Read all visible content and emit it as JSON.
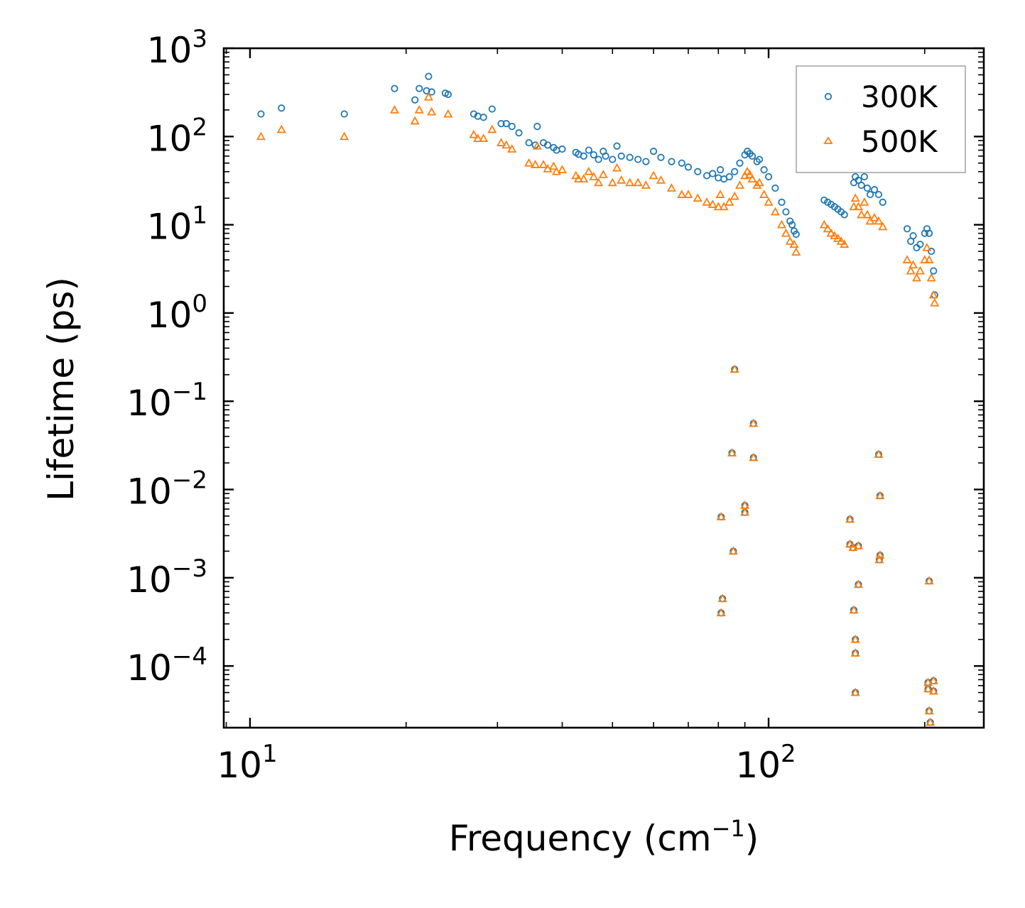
{
  "chart_data": {
    "type": "scatter",
    "xscale": "log",
    "yscale": "log",
    "xlim": [
      8.9,
      260
    ],
    "ylim": [
      2e-05,
      1000
    ],
    "xlabel": {
      "main": "Frequency (cm",
      "sup": "−1",
      "end": ")"
    },
    "ylabel": "Lifetime (ps)",
    "x_ticks": [
      {
        "base": "10",
        "exp": "1",
        "value": 10
      },
      {
        "base": "10",
        "exp": "2",
        "value": 100
      }
    ],
    "y_ticks": [
      {
        "base": "10",
        "exp": "3",
        "value": 1000
      },
      {
        "base": "10",
        "exp": "2",
        "value": 100
      },
      {
        "base": "10",
        "exp": "1",
        "value": 10
      },
      {
        "base": "10",
        "exp": "0",
        "value": 1
      },
      {
        "base": "10",
        "exp": "−1",
        "value": 0.1
      },
      {
        "base": "10",
        "exp": "−2",
        "value": 0.01
      },
      {
        "base": "10",
        "exp": "−3",
        "value": 0.001
      },
      {
        "base": "10",
        "exp": "−4",
        "value": 0.0001
      }
    ],
    "legend_position": "top-right",
    "series": [
      {
        "name": "300K",
        "marker": "circle",
        "color": "#1f77b4",
        "points": [
          [
            10.5,
            180
          ],
          [
            11.5,
            210
          ],
          [
            15.2,
            180
          ],
          [
            19.0,
            350
          ],
          [
            20.8,
            260
          ],
          [
            21.2,
            350
          ],
          [
            21.9,
            330
          ],
          [
            22.1,
            480
          ],
          [
            22.4,
            320
          ],
          [
            23.8,
            310
          ],
          [
            24.1,
            300
          ],
          [
            27.0,
            180
          ],
          [
            27.5,
            170
          ],
          [
            28.2,
            165
          ],
          [
            29.3,
            205
          ],
          [
            30.5,
            140
          ],
          [
            31.2,
            140
          ],
          [
            32.0,
            130
          ],
          [
            33.0,
            110
          ],
          [
            34.5,
            85
          ],
          [
            35.5,
            80
          ],
          [
            35.8,
            130
          ],
          [
            36.8,
            85
          ],
          [
            37.5,
            80
          ],
          [
            38.5,
            75
          ],
          [
            39.0,
            70
          ],
          [
            40.0,
            72
          ],
          [
            42.5,
            66
          ],
          [
            43.0,
            63
          ],
          [
            44.0,
            60
          ],
          [
            45.0,
            70
          ],
          [
            46.0,
            62
          ],
          [
            47.0,
            55
          ],
          [
            48.0,
            68
          ],
          [
            48.5,
            60
          ],
          [
            50.0,
            55
          ],
          [
            51.0,
            78
          ],
          [
            52.0,
            60
          ],
          [
            54.0,
            58
          ],
          [
            56.0,
            55
          ],
          [
            58.0,
            52
          ],
          [
            60.0,
            68
          ],
          [
            62.0,
            58
          ],
          [
            65.0,
            52
          ],
          [
            68.0,
            50
          ],
          [
            70.0,
            45
          ],
          [
            73.0,
            40
          ],
          [
            76.0,
            36
          ],
          [
            78.0,
            38
          ],
          [
            80.0,
            34
          ],
          [
            80.7,
            42
          ],
          [
            82.0,
            33
          ],
          [
            84.0,
            35
          ],
          [
            86.0,
            40
          ],
          [
            88.0,
            50
          ],
          [
            90.0,
            62
          ],
          [
            91.0,
            68
          ],
          [
            92.0,
            64
          ],
          [
            93.0,
            60
          ],
          [
            95.0,
            52
          ],
          [
            96.0,
            55
          ],
          [
            98.0,
            42
          ],
          [
            100.0,
            35
          ],
          [
            103.0,
            26
          ],
          [
            106.0,
            18
          ],
          [
            108.0,
            14
          ],
          [
            110.0,
            11
          ],
          [
            111.0,
            10
          ],
          [
            112.0,
            8.5
          ],
          [
            113.0,
            7.8
          ],
          [
            128.0,
            19
          ],
          [
            130.0,
            18
          ],
          [
            132.0,
            17
          ],
          [
            134.0,
            16
          ],
          [
            136.0,
            15
          ],
          [
            138.0,
            14
          ],
          [
            140.0,
            13
          ],
          [
            146.0,
            30
          ],
          [
            147.0,
            35
          ],
          [
            149.0,
            32
          ],
          [
            151.0,
            28
          ],
          [
            153.0,
            35
          ],
          [
            155.0,
            26
          ],
          [
            157.0,
            22
          ],
          [
            160.0,
            25
          ],
          [
            163.0,
            22
          ],
          [
            166.0,
            18
          ],
          [
            185.0,
            9
          ],
          [
            188.0,
            6.5
          ],
          [
            190.0,
            7.5
          ],
          [
            193.0,
            5.5
          ],
          [
            196.0,
            6
          ],
          [
            200.0,
            8
          ],
          [
            202.0,
            9
          ],
          [
            204.0,
            8
          ],
          [
            206.0,
            5
          ],
          [
            208.0,
            3
          ],
          [
            209.0,
            1.6
          ],
          [
            81.0,
            0.0049
          ],
          [
            81.5,
            0.00058
          ],
          [
            81.0,
            0.0004
          ],
          [
            85.0,
            0.026
          ],
          [
            85.5,
            0.002
          ],
          [
            86.0,
            0.23
          ],
          [
            90.0,
            0.0066
          ],
          [
            90.0,
            0.0055
          ],
          [
            93.5,
            0.056
          ],
          [
            93.5,
            0.023
          ],
          [
            143.5,
            0.0046
          ],
          [
            143.5,
            0.0024
          ],
          [
            145.5,
            0.0022
          ],
          [
            146.0,
            0.00043
          ],
          [
            147.0,
            0.0002
          ],
          [
            147.0,
            0.00014
          ],
          [
            147.0,
            5e-05
          ],
          [
            149.0,
            0.0023
          ],
          [
            149.0,
            0.00084
          ],
          [
            163.0,
            0.025
          ],
          [
            164.0,
            0.0085
          ],
          [
            164.0,
            0.0018
          ],
          [
            163.5,
            0.0016
          ],
          [
            204.0,
            0.00092
          ],
          [
            203.0,
            6.5e-05
          ],
          [
            203.0,
            5.5e-05
          ],
          [
            204.0,
            3.1e-05
          ],
          [
            205.0,
            2.3e-05
          ],
          [
            208.0,
            6.8e-05
          ],
          [
            208.0,
            5.2e-05
          ]
        ]
      },
      {
        "name": "500K",
        "marker": "triangle",
        "color": "#ff7f0e",
        "points": [
          [
            10.5,
            100
          ],
          [
            11.5,
            120
          ],
          [
            15.2,
            100
          ],
          [
            19.0,
            200
          ],
          [
            20.8,
            150
          ],
          [
            21.2,
            200
          ],
          [
            22.1,
            280
          ],
          [
            22.4,
            190
          ],
          [
            24.1,
            180
          ],
          [
            27.0,
            105
          ],
          [
            27.5,
            95
          ],
          [
            28.2,
            95
          ],
          [
            29.3,
            120
          ],
          [
            30.5,
            85
          ],
          [
            31.2,
            80
          ],
          [
            32.0,
            72
          ],
          [
            34.5,
            50
          ],
          [
            35.5,
            48
          ],
          [
            35.8,
            78
          ],
          [
            36.8,
            48
          ],
          [
            37.5,
            43
          ],
          [
            38.5,
            46
          ],
          [
            39.0,
            40
          ],
          [
            40.0,
            42
          ],
          [
            42.5,
            36
          ],
          [
            43.0,
            33
          ],
          [
            44.0,
            33
          ],
          [
            45.0,
            40
          ],
          [
            46.0,
            35
          ],
          [
            47.0,
            30
          ],
          [
            48.0,
            37
          ],
          [
            50.0,
            30
          ],
          [
            51.0,
            44
          ],
          [
            52.0,
            32
          ],
          [
            54.0,
            30
          ],
          [
            56.0,
            30
          ],
          [
            58.0,
            28
          ],
          [
            60.0,
            36
          ],
          [
            62.0,
            32
          ],
          [
            65.0,
            26
          ],
          [
            68.0,
            22
          ],
          [
            70.0,
            22
          ],
          [
            73.0,
            20
          ],
          [
            76.0,
            18
          ],
          [
            78.0,
            17
          ],
          [
            80.0,
            16
          ],
          [
            80.7,
            22
          ],
          [
            82.0,
            16
          ],
          [
            84.0,
            18
          ],
          [
            86.0,
            21
          ],
          [
            88.0,
            28
          ],
          [
            90.0,
            36
          ],
          [
            91.0,
            40
          ],
          [
            92.0,
            37
          ],
          [
            93.0,
            33
          ],
          [
            95.0,
            28
          ],
          [
            96.0,
            30
          ],
          [
            98.0,
            22
          ],
          [
            100.0,
            18
          ],
          [
            103.0,
            14
          ],
          [
            106.0,
            10
          ],
          [
            108.0,
            8
          ],
          [
            110.0,
            6.5
          ],
          [
            112.0,
            6
          ],
          [
            113.0,
            4.9
          ],
          [
            128.0,
            10
          ],
          [
            130.0,
            9
          ],
          [
            132.0,
            8
          ],
          [
            134.0,
            7.5
          ],
          [
            136.0,
            7
          ],
          [
            138.0,
            6.5
          ],
          [
            140.0,
            6
          ],
          [
            146.0,
            16
          ],
          [
            147.0,
            20
          ],
          [
            149.0,
            16
          ],
          [
            151.0,
            13
          ],
          [
            153.0,
            18
          ],
          [
            155.0,
            13
          ],
          [
            157.0,
            11
          ],
          [
            160.0,
            12
          ],
          [
            163.0,
            11
          ],
          [
            166.0,
            9.5
          ],
          [
            185.0,
            4
          ],
          [
            188.0,
            3
          ],
          [
            190.0,
            3.5
          ],
          [
            193.0,
            2.5
          ],
          [
            196.0,
            3
          ],
          [
            200.0,
            4
          ],
          [
            202.0,
            5.5
          ],
          [
            204.0,
            4
          ],
          [
            206.0,
            2.5
          ],
          [
            208.0,
            1.6
          ],
          [
            209.0,
            1.3
          ],
          [
            81.0,
            0.0049
          ],
          [
            81.5,
            0.00058
          ],
          [
            81.0,
            0.0004
          ],
          [
            85.0,
            0.026
          ],
          [
            85.5,
            0.002
          ],
          [
            86.0,
            0.23
          ],
          [
            90.0,
            0.0066
          ],
          [
            90.0,
            0.0055
          ],
          [
            93.5,
            0.056
          ],
          [
            93.5,
            0.023
          ],
          [
            143.5,
            0.0046
          ],
          [
            143.5,
            0.0024
          ],
          [
            145.5,
            0.0022
          ],
          [
            146.0,
            0.00043
          ],
          [
            147.0,
            0.0002
          ],
          [
            147.0,
            0.00014
          ],
          [
            147.0,
            5e-05
          ],
          [
            149.0,
            0.0023
          ],
          [
            149.0,
            0.00084
          ],
          [
            163.0,
            0.025
          ],
          [
            164.0,
            0.0085
          ],
          [
            164.0,
            0.0018
          ],
          [
            163.5,
            0.0016
          ],
          [
            204.0,
            0.00092
          ],
          [
            203.0,
            6.5e-05
          ],
          [
            203.0,
            5.5e-05
          ],
          [
            204.0,
            3.1e-05
          ],
          [
            205.0,
            2.3e-05
          ],
          [
            208.0,
            6.8e-05
          ],
          [
            208.0,
            5.2e-05
          ]
        ]
      }
    ]
  }
}
